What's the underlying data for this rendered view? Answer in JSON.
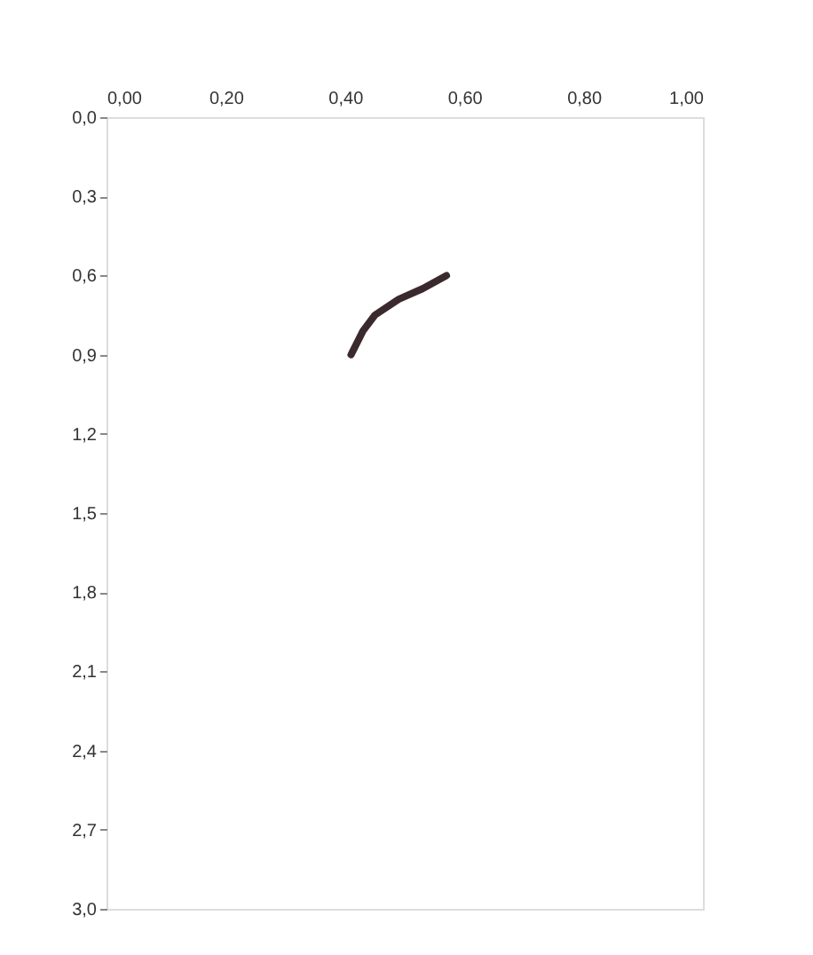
{
  "chart_data": {
    "type": "line",
    "x": [
      0.41,
      0.43,
      0.45,
      0.49,
      0.53,
      0.57
    ],
    "series": [
      {
        "color": "#3a2a2e",
        "values": [
          0.9,
          0.81,
          0.75,
          0.69,
          0.65,
          0.6
        ]
      }
    ],
    "xlim": [
      0,
      1
    ],
    "ylim": [
      3,
      0
    ],
    "xticks": [
      {
        "value": 0,
        "label": "0,00"
      },
      {
        "value": 0.2,
        "label": "0,20"
      },
      {
        "value": 0.4,
        "label": "0,40"
      },
      {
        "value": 0.6,
        "label": "0,60"
      },
      {
        "value": 0.8,
        "label": "0,80"
      },
      {
        "value": 1,
        "label": "1,00"
      }
    ],
    "yticks": [
      {
        "value": 0,
        "label": "0,0"
      },
      {
        "value": 0.3,
        "label": "0,3"
      },
      {
        "value": 0.6,
        "label": "0,6"
      },
      {
        "value": 0.9,
        "label": "0,9"
      },
      {
        "value": 1.2,
        "label": "1,2"
      },
      {
        "value": 1.5,
        "label": "1,5"
      },
      {
        "value": 1.8,
        "label": "1,8"
      },
      {
        "value": 2.1,
        "label": "2,1"
      },
      {
        "value": 2.4,
        "label": "2,4"
      },
      {
        "value": 2.7,
        "label": "2,7"
      },
      {
        "value": 3,
        "label": "3,0"
      }
    ],
    "grid": false,
    "marker": "none",
    "line_style": "solid"
  }
}
